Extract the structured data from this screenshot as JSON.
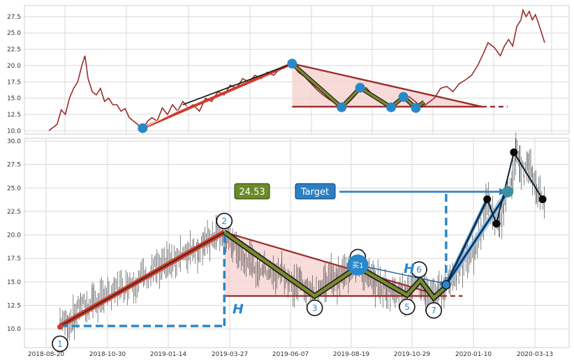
{
  "chart_data": [
    {
      "type": "line",
      "panel": "top",
      "series": [
        {
          "values": [
            [
              0,
              10.0
            ],
            [
              8,
              11
            ],
            [
              12,
              13.2
            ],
            [
              16,
              12.5
            ],
            [
              20,
              15
            ],
            [
              24,
              16.5
            ],
            [
              28,
              17.5
            ],
            [
              32,
              20
            ],
            [
              35,
              21.5
            ],
            [
              38,
              18
            ],
            [
              42,
              16
            ],
            [
              46,
              15.5
            ],
            [
              50,
              16.5
            ],
            [
              54,
              14.5
            ],
            [
              58,
              15
            ],
            [
              62,
              14
            ],
            [
              66,
              14
            ],
            [
              70,
              13
            ],
            [
              74,
              13.4
            ],
            [
              78,
              12
            ],
            [
              82,
              11.5
            ],
            [
              86,
              11
            ],
            [
              91,
              10.2
            ],
            [
              96,
              11.5
            ],
            [
              100,
              12
            ],
            [
              105,
              11.5
            ],
            [
              110,
              13.5
            ],
            [
              115,
              12.5
            ],
            [
              120,
              14
            ],
            [
              125,
              13
            ],
            [
              130,
              14.5
            ],
            [
              135,
              13.5
            ],
            [
              140,
              14
            ],
            [
              146,
              13
            ],
            [
              152,
              15
            ],
            [
              158,
              14.5
            ],
            [
              164,
              16
            ],
            [
              170,
              15.5
            ],
            [
              176,
              17
            ],
            [
              182,
              16.5
            ],
            [
              188,
              18
            ],
            [
              194,
              17.5
            ],
            [
              200,
              18.5
            ],
            [
              206,
              18
            ],
            [
              212,
              19
            ],
            [
              218,
              18.5
            ],
            [
              224,
              19.5
            ],
            [
              230,
              19.8
            ],
            [
              236,
              20.3
            ],
            [
              242,
              19
            ],
            [
              248,
              18.3
            ],
            [
              254,
              17.3
            ],
            [
              260,
              16.3
            ],
            [
              266,
              15.5
            ],
            [
              272,
              14.8
            ],
            [
              278,
              14.2
            ],
            [
              284,
              13.8
            ],
            [
              290,
              14.2
            ],
            [
              296,
              15.2
            ],
            [
              302,
              16.3
            ],
            [
              308,
              16.6
            ],
            [
              314,
              15.5
            ],
            [
              320,
              14.8
            ],
            [
              326,
              14.0
            ],
            [
              332,
              13.7
            ],
            [
              338,
              14.2
            ],
            [
              344,
              15.0
            ],
            [
              350,
              15.2
            ],
            [
              356,
              14.4
            ],
            [
              362,
              13.6
            ],
            [
              368,
              14.3
            ],
            [
              374,
              15.0
            ],
            [
              380,
              16.5
            ],
            [
              386,
              16.8
            ],
            [
              392,
              16.0
            ],
            [
              398,
              17.2
            ],
            [
              404,
              17.8
            ],
            [
              410,
              18.5
            ],
            [
              416,
              20.0
            ],
            [
              422,
              22.0
            ],
            [
              426,
              23.5
            ],
            [
              432,
              22.8
            ],
            [
              438,
              21.5
            ],
            [
              442,
              23
            ],
            [
              446,
              24
            ],
            [
              450,
              23
            ],
            [
              454,
              26
            ],
            [
              458,
              27
            ],
            [
              460,
              28.5
            ],
            [
              463,
              27.5
            ],
            [
              466,
              28.3
            ],
            [
              469,
              27
            ],
            [
              472,
              27.8
            ],
            [
              475,
              26.5
            ],
            [
              478,
              25
            ],
            [
              481,
              23.5
            ]
          ]
        }
      ],
      "ylim": [
        9.5,
        29.2
      ],
      "yticks": [
        "10.0",
        "12.5",
        "15.0",
        "17.5",
        "20.0",
        "22.5",
        "25.0",
        "27.5"
      ]
    },
    {
      "type": "candlestick",
      "panel": "bottom",
      "xticks": [
        "2018-08-20",
        "2018-10-30",
        "2019-01-14",
        "2019-03-27",
        "2019-06-07",
        "2019-08-19",
        "2019-10-29",
        "2020-01-10",
        "2020-03-13"
      ],
      "yticks": [
        "10.0",
        "12.5",
        "15.0",
        "17.5",
        "20.0",
        "22.5",
        "25.0",
        "27.5",
        "30.0"
      ],
      "ylim": [
        8.0,
        30.3
      ],
      "pattern_points": [
        {
          "label": "1",
          "x": 0,
          "y": 10.2
        },
        {
          "label": "2",
          "x": 160,
          "y": 20.3
        },
        {
          "label": "3",
          "x": 248,
          "y": 13.5
        },
        {
          "label": "4",
          "x": 290,
          "y": 16.6
        },
        {
          "label": "5",
          "x": 338,
          "y": 13.6
        },
        {
          "label": "6",
          "x": 351,
          "y": 15.2
        },
        {
          "label": "7",
          "x": 364,
          "y": 13.3
        }
      ],
      "price_series": [
        [
          0,
          11
        ],
        [
          8,
          10.6
        ],
        [
          14,
          11.2
        ],
        [
          20,
          12.8
        ],
        [
          26,
          12.2
        ],
        [
          32,
          13.3
        ],
        [
          38,
          12.6
        ],
        [
          44,
          13.9
        ],
        [
          50,
          13.4
        ],
        [
          56,
          14.6
        ],
        [
          62,
          14.1
        ],
        [
          68,
          15.2
        ],
        [
          74,
          14.7
        ],
        [
          80,
          15.9
        ],
        [
          86,
          15.3
        ],
        [
          92,
          16.6
        ],
        [
          98,
          16.1
        ],
        [
          104,
          17.3
        ],
        [
          110,
          16.8
        ],
        [
          116,
          18.1
        ],
        [
          122,
          17.6
        ],
        [
          128,
          18.8
        ],
        [
          134,
          18.3
        ],
        [
          140,
          19.4
        ],
        [
          146,
          19.0
        ],
        [
          152,
          20.1
        ],
        [
          158,
          20.0
        ],
        [
          162,
          19.6
        ],
        [
          168,
          19.1
        ],
        [
          174,
          18.1
        ],
        [
          180,
          17.6
        ],
        [
          186,
          17.0
        ],
        [
          192,
          16.2
        ],
        [
          198,
          16.6
        ],
        [
          204,
          16.0
        ],
        [
          210,
          15.6
        ],
        [
          216,
          16.4
        ],
        [
          222,
          15.1
        ],
        [
          228,
          14.5
        ],
        [
          234,
          15.2
        ],
        [
          240,
          14.2
        ],
        [
          246,
          13.6
        ],
        [
          252,
          14.3
        ],
        [
          258,
          15.0
        ],
        [
          264,
          15.6
        ],
        [
          270,
          15.2
        ],
        [
          276,
          15.8
        ],
        [
          282,
          16.4
        ],
        [
          288,
          16.9
        ],
        [
          294,
          16.1
        ],
        [
          300,
          15.6
        ],
        [
          306,
          15.0
        ],
        [
          312,
          14.6
        ],
        [
          318,
          14.2
        ],
        [
          324,
          13.9
        ],
        [
          330,
          14.3
        ],
        [
          336,
          13.8
        ],
        [
          342,
          14.4
        ],
        [
          348,
          15.1
        ],
        [
          352,
          14.6
        ],
        [
          356,
          13.8
        ],
        [
          362,
          13.6
        ],
        [
          368,
          13.9
        ],
        [
          374,
          14.5
        ],
        [
          380,
          15.2
        ],
        [
          386,
          16.0
        ],
        [
          392,
          16.8
        ],
        [
          398,
          17.6
        ],
        [
          404,
          18.6
        ],
        [
          410,
          20.0
        ],
        [
          416,
          23.8
        ],
        [
          420,
          22.5
        ],
        [
          424,
          21.5
        ],
        [
          428,
          21.0
        ],
        [
          432,
          23.0
        ],
        [
          436,
          24.5
        ],
        [
          440,
          26.0
        ],
        [
          444,
          28.8
        ],
        [
          448,
          27.5
        ],
        [
          452,
          26.5
        ],
        [
          456,
          27.4
        ],
        [
          460,
          26.2
        ],
        [
          464,
          25.0
        ],
        [
          468,
          24.0
        ],
        [
          472,
          23.8
        ]
      ],
      "extra_markers": [
        [
          416,
          23.8
        ],
        [
          425,
          21.2
        ],
        [
          436,
          24.6
        ],
        [
          442,
          28.8
        ],
        [
          470,
          23.8
        ]
      ],
      "annotations": {
        "badge_value": "24.53",
        "target_label": "Target",
        "buy_label": "买1",
        "height_label": "H"
      }
    }
  ],
  "colors": {
    "price_line": "#9b2c2c",
    "trend_red": "#cf3c2a",
    "band_dark": "#1f1f1f",
    "band_green": "#7a8c2a",
    "marker_blue": "#2988c8",
    "fill_pink": "#f5d2cf",
    "grid": "#d9d9d9",
    "badge_green": "#6b8a26",
    "target_blue": "#2d7fc4"
  }
}
